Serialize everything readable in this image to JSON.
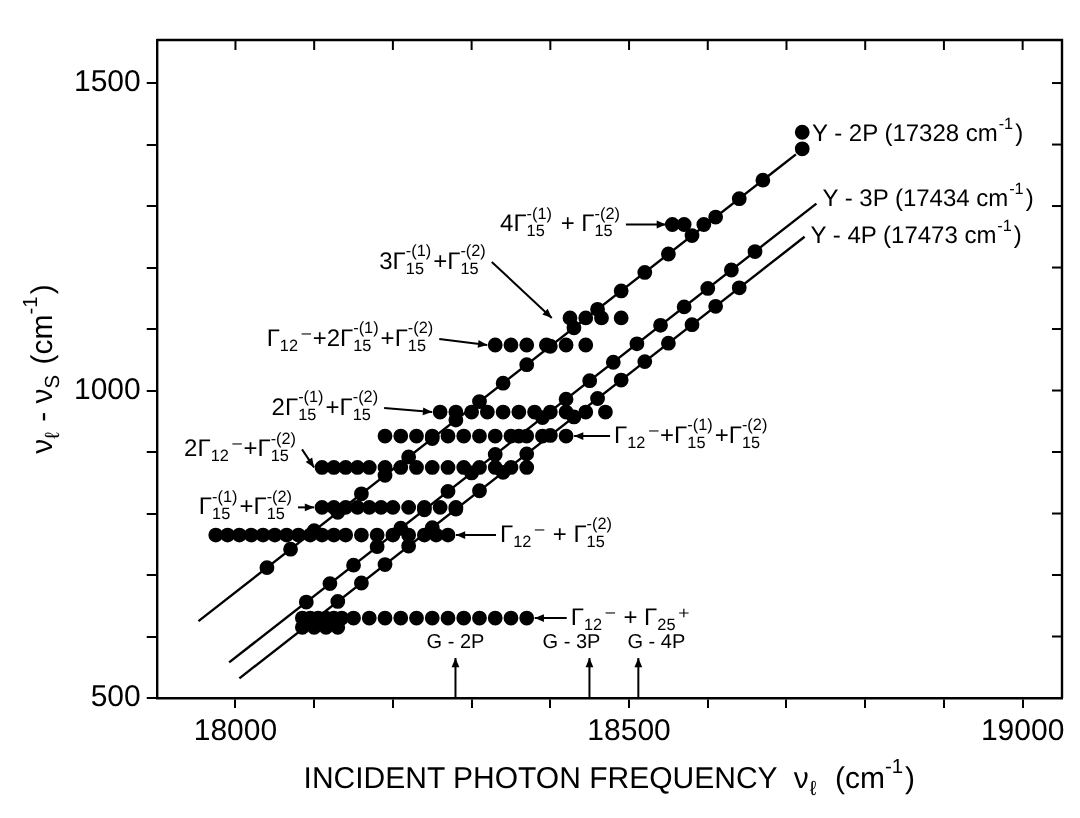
{
  "chart_data": {
    "type": "scatter",
    "xlabel": "INCIDENT PHOTON FREQUENCY  ν$_{ℓ}$  (cm$^{-1}$)",
    "ylabel": "ν$_{ℓ}$ - ν$_{S}$ (cm$^{-1}$)",
    "xlim": [
      17900,
      19050
    ],
    "ylim": [
      500,
      1570
    ],
    "xticks": [
      18000,
      {
        "value": 18100,
        "label": null
      },
      {
        "value": 18200,
        "label": null
      },
      {
        "value": 18300,
        "label": null
      },
      {
        "value": 18400,
        "label": null
      },
      18500,
      {
        "value": 18600,
        "label": null
      },
      {
        "value": 18700,
        "label": null
      },
      {
        "value": 18800,
        "label": null
      },
      {
        "value": 18900,
        "label": null
      },
      19000
    ],
    "yticks": [
      500,
      {
        "value": 600,
        "label": null
      },
      {
        "value": 700,
        "label": null
      },
      {
        "value": 800,
        "label": null
      },
      {
        "value": 900,
        "label": null
      },
      1000,
      {
        "value": 1100,
        "label": null
      },
      {
        "value": 1200,
        "label": null
      },
      {
        "value": 1300,
        "label": null
      },
      {
        "value": 1400,
        "label": null
      },
      1500
    ],
    "legend": "top right",
    "series": [
      {
        "marker": "circle",
        "color": "#000000",
        "x": [
          18085,
          18095,
          18105,
          18115,
          18125,
          18135,
          18150,
          18170,
          18190,
          18210,
          18230,
          18250,
          18270,
          18290,
          18310,
          18330,
          18350,
          18370,
          18085,
          18100,
          18115,
          18130,
          17975,
          17990,
          18005,
          18020,
          18035,
          18050,
          18065,
          18080,
          18095,
          18110,
          18125,
          18140,
          18160,
          18180,
          18200,
          18220,
          18240,
          18255,
          18270,
          18110,
          18125,
          18140,
          18155,
          18170,
          18185,
          18200,
          18220,
          18240,
          18260,
          18280,
          18110,
          18125,
          18140,
          18155,
          18170,
          18190,
          18210,
          18230,
          18250,
          18270,
          18290,
          18310,
          18330,
          18350,
          18370,
          18190,
          18210,
          18230,
          18250,
          18270,
          18290,
          18310,
          18330,
          18350,
          18370,
          18390,
          18420,
          18260,
          18280,
          18300,
          18320,
          18340,
          18360,
          18380,
          18400,
          18420,
          18445,
          18470,
          18330,
          18350,
          18370,
          18395,
          18420,
          18445,
          18425,
          18445,
          18465,
          18490,
          18555,
          18570,
          18595,
          18040,
          18070,
          18100,
          18130,
          18160,
          18190,
          18220,
          18250,
          18280,
          18310,
          18340,
          18370,
          18400,
          18430,
          18460,
          18490,
          18520,
          18550,
          18580,
          18610,
          18640,
          18670,
          18720,
          18720,
          18090,
          18120,
          18150,
          18180,
          18210,
          18240,
          18270,
          18300,
          18330,
          18360,
          18390,
          18420,
          18450,
          18480,
          18510,
          18540,
          18570,
          18600,
          18630,
          18660,
          18130,
          18160,
          18190,
          18220,
          18250,
          18280,
          18310,
          18340,
          18370,
          18400,
          18430,
          18460,
          18490,
          18520,
          18550,
          18580,
          18610,
          18640
        ],
        "values": [
          630,
          630,
          630,
          630,
          630,
          630,
          630,
          630,
          630,
          630,
          630,
          630,
          630,
          630,
          630,
          630,
          630,
          630,
          615,
          615,
          615,
          615,
          765,
          765,
          765,
          765,
          765,
          765,
          765,
          765,
          765,
          765,
          765,
          765,
          765,
          765,
          765,
          765,
          765,
          765,
          765,
          810,
          810,
          810,
          810,
          810,
          810,
          810,
          810,
          810,
          810,
          810,
          875,
          875,
          875,
          875,
          875,
          875,
          875,
          875,
          875,
          875,
          875,
          875,
          875,
          875,
          875,
          926,
          926,
          926,
          926,
          926,
          926,
          926,
          926,
          926,
          926,
          926,
          926,
          965,
          965,
          965,
          965,
          965,
          965,
          965,
          965,
          965,
          965,
          965,
          1074,
          1074,
          1074,
          1074,
          1074,
          1074,
          1118,
          1118,
          1118,
          1118,
          1270,
          1270,
          1270,
          712,
          742,
          772,
          802,
          832,
          862,
          892,
          922,
          952,
          982,
          1012,
          1042,
          1072,
          1102,
          1132,
          1162,
          1192,
          1222,
          1252,
          1282,
          1312,
          1342,
          1393,
          1420,
          656,
          686,
          716,
          746,
          776,
          806,
          836,
          866,
          896,
          926,
          956,
          986,
          1016,
          1046,
          1076,
          1106,
          1136,
          1166,
          1196,
          1226,
          657,
          687,
          717,
          747,
          777,
          807,
          837,
          867,
          897,
          927,
          957,
          987,
          1017,
          1047,
          1077,
          1107,
          1137,
          1167
        ]
      },
      {
        "type": "line",
        "name": "Y - 2P (17328 cm$^{-1}$)",
        "color": "#000000",
        "x": [
          17953,
          18712
        ],
        "values": [
          625,
          1384
        ]
      },
      {
        "type": "line",
        "name": "Y - 3P (17434 cm$^{-1}$)",
        "color": "#000000",
        "x": [
          17992,
          18738
        ],
        "values": [
          558,
          1304
        ]
      },
      {
        "type": "line",
        "name": "Y - 4P (17473 cm$^{-1}$)",
        "color": "#000000",
        "x": [
          18005,
          18723
        ],
        "values": [
          532,
          1250
        ]
      }
    ],
    "annotations": [
      {
        "text": "4Γ$_{15}$$^{-(1)}$ + Γ$_{15}$$^{-(2)}$",
        "x": 18557,
        "y": 1270
      },
      {
        "text": "3Γ$_{15}$$^{-(1)}$+Γ$_{15}$$^{-(2)}$",
        "x": 18412,
        "y": 1118
      },
      {
        "text": "Γ$_{12}$⁻+2Γ$_{15}$$^{-(1)}$+Γ$_{15}$$^{-(2)}$",
        "x": 18330,
        "y": 1074
      },
      {
        "text": "2Γ$_{15}$$^{-(1)}$+Γ$_{15}$$^{-(2)}$",
        "x": 18260,
        "y": 965
      },
      {
        "text": "2Γ$_{12}$⁻+Γ$_{15}$$^{-(2)}$",
        "x": 18110,
        "y": 875
      },
      {
        "text": "Γ$_{15}$$^{-(1)}$+Γ$_{15}$$^{-(2)}$",
        "x": 18110,
        "y": 810
      },
      {
        "text": "Γ$_{12}$⁻+Γ$_{15}$$^{-(1)}$+Γ$_{15}$$^{-(2)}$",
        "x": 18420,
        "y": 926
      },
      {
        "text": "Γ$_{12}$⁻ + Γ$_{15}$$^{-(2)}$",
        "x": 18270,
        "y": 765
      },
      {
        "text": "Γ$_{12}$⁻ + Γ$_{25}$⁺",
        "x": 18370,
        "y": 630
      },
      "G - 2P",
      "G - 3P",
      "G - 4P"
    ]
  }
}
